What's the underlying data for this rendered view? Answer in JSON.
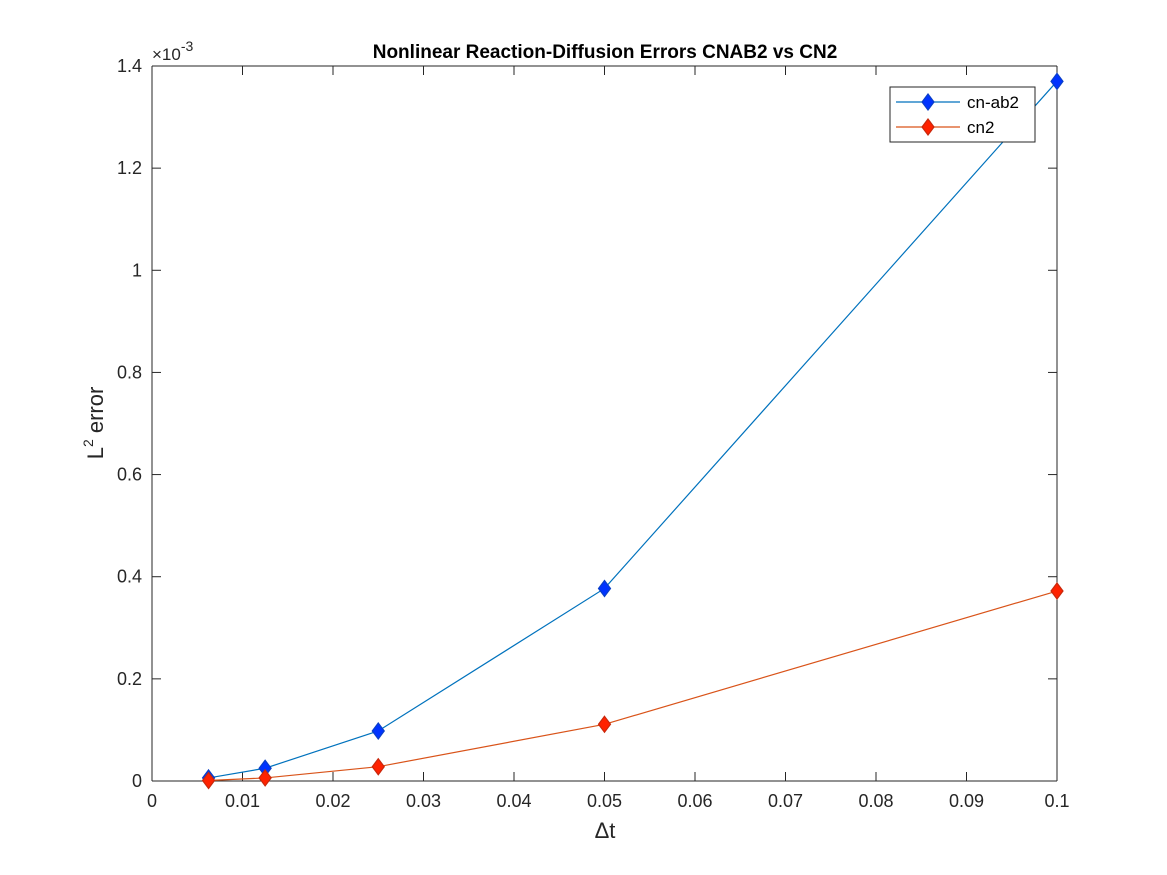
{
  "chart_data": {
    "type": "line",
    "title": "Nonlinear Reaction-Diffusion Errors CNAB2 vs CN2",
    "xlabel": "Δt",
    "ylabel": "L² error",
    "ylabel_base": "L",
    "ylabel_sup": "2",
    "ylabel_rest": " error",
    "xlim": [
      0,
      0.1
    ],
    "ylim": [
      0,
      0.0014
    ],
    "x_ticks": [
      0,
      0.01,
      0.02,
      0.03,
      0.04,
      0.05,
      0.06,
      0.07,
      0.08,
      0.09,
      0.1
    ],
    "x_tick_labels": [
      "0",
      "0.01",
      "0.02",
      "0.03",
      "0.04",
      "0.05",
      "0.06",
      "0.07",
      "0.08",
      "0.09",
      "0.1"
    ],
    "y_ticks": [
      0,
      0.0002,
      0.0004,
      0.0006,
      0.0008,
      0.001,
      0.0012,
      0.0014
    ],
    "y_tick_labels": [
      "0",
      "0.2",
      "0.4",
      "0.6",
      "0.8",
      "1",
      "1.2",
      "1.4"
    ],
    "y_exponent_label": "×10",
    "y_exponent_power": "-3",
    "grid": false,
    "legend_position": "top-right",
    "x": [
      0.00625,
      0.0125,
      0.025,
      0.05,
      0.1
    ],
    "series": [
      {
        "name": "cn-ab2",
        "line_color": "#0072BD",
        "marker_face": "#0033ff",
        "marker_edge": "#0a3fc7",
        "values": [
          6e-06,
          2.5e-05,
          9.8e-05,
          0.000377,
          0.00137
        ]
      },
      {
        "name": "cn2",
        "line_color": "#D95319",
        "marker_face": "#ff2200",
        "marker_edge": "#c8280c",
        "values": [
          1e-06,
          6e-06,
          2.8e-05,
          0.000111,
          0.000372
        ]
      }
    ]
  }
}
